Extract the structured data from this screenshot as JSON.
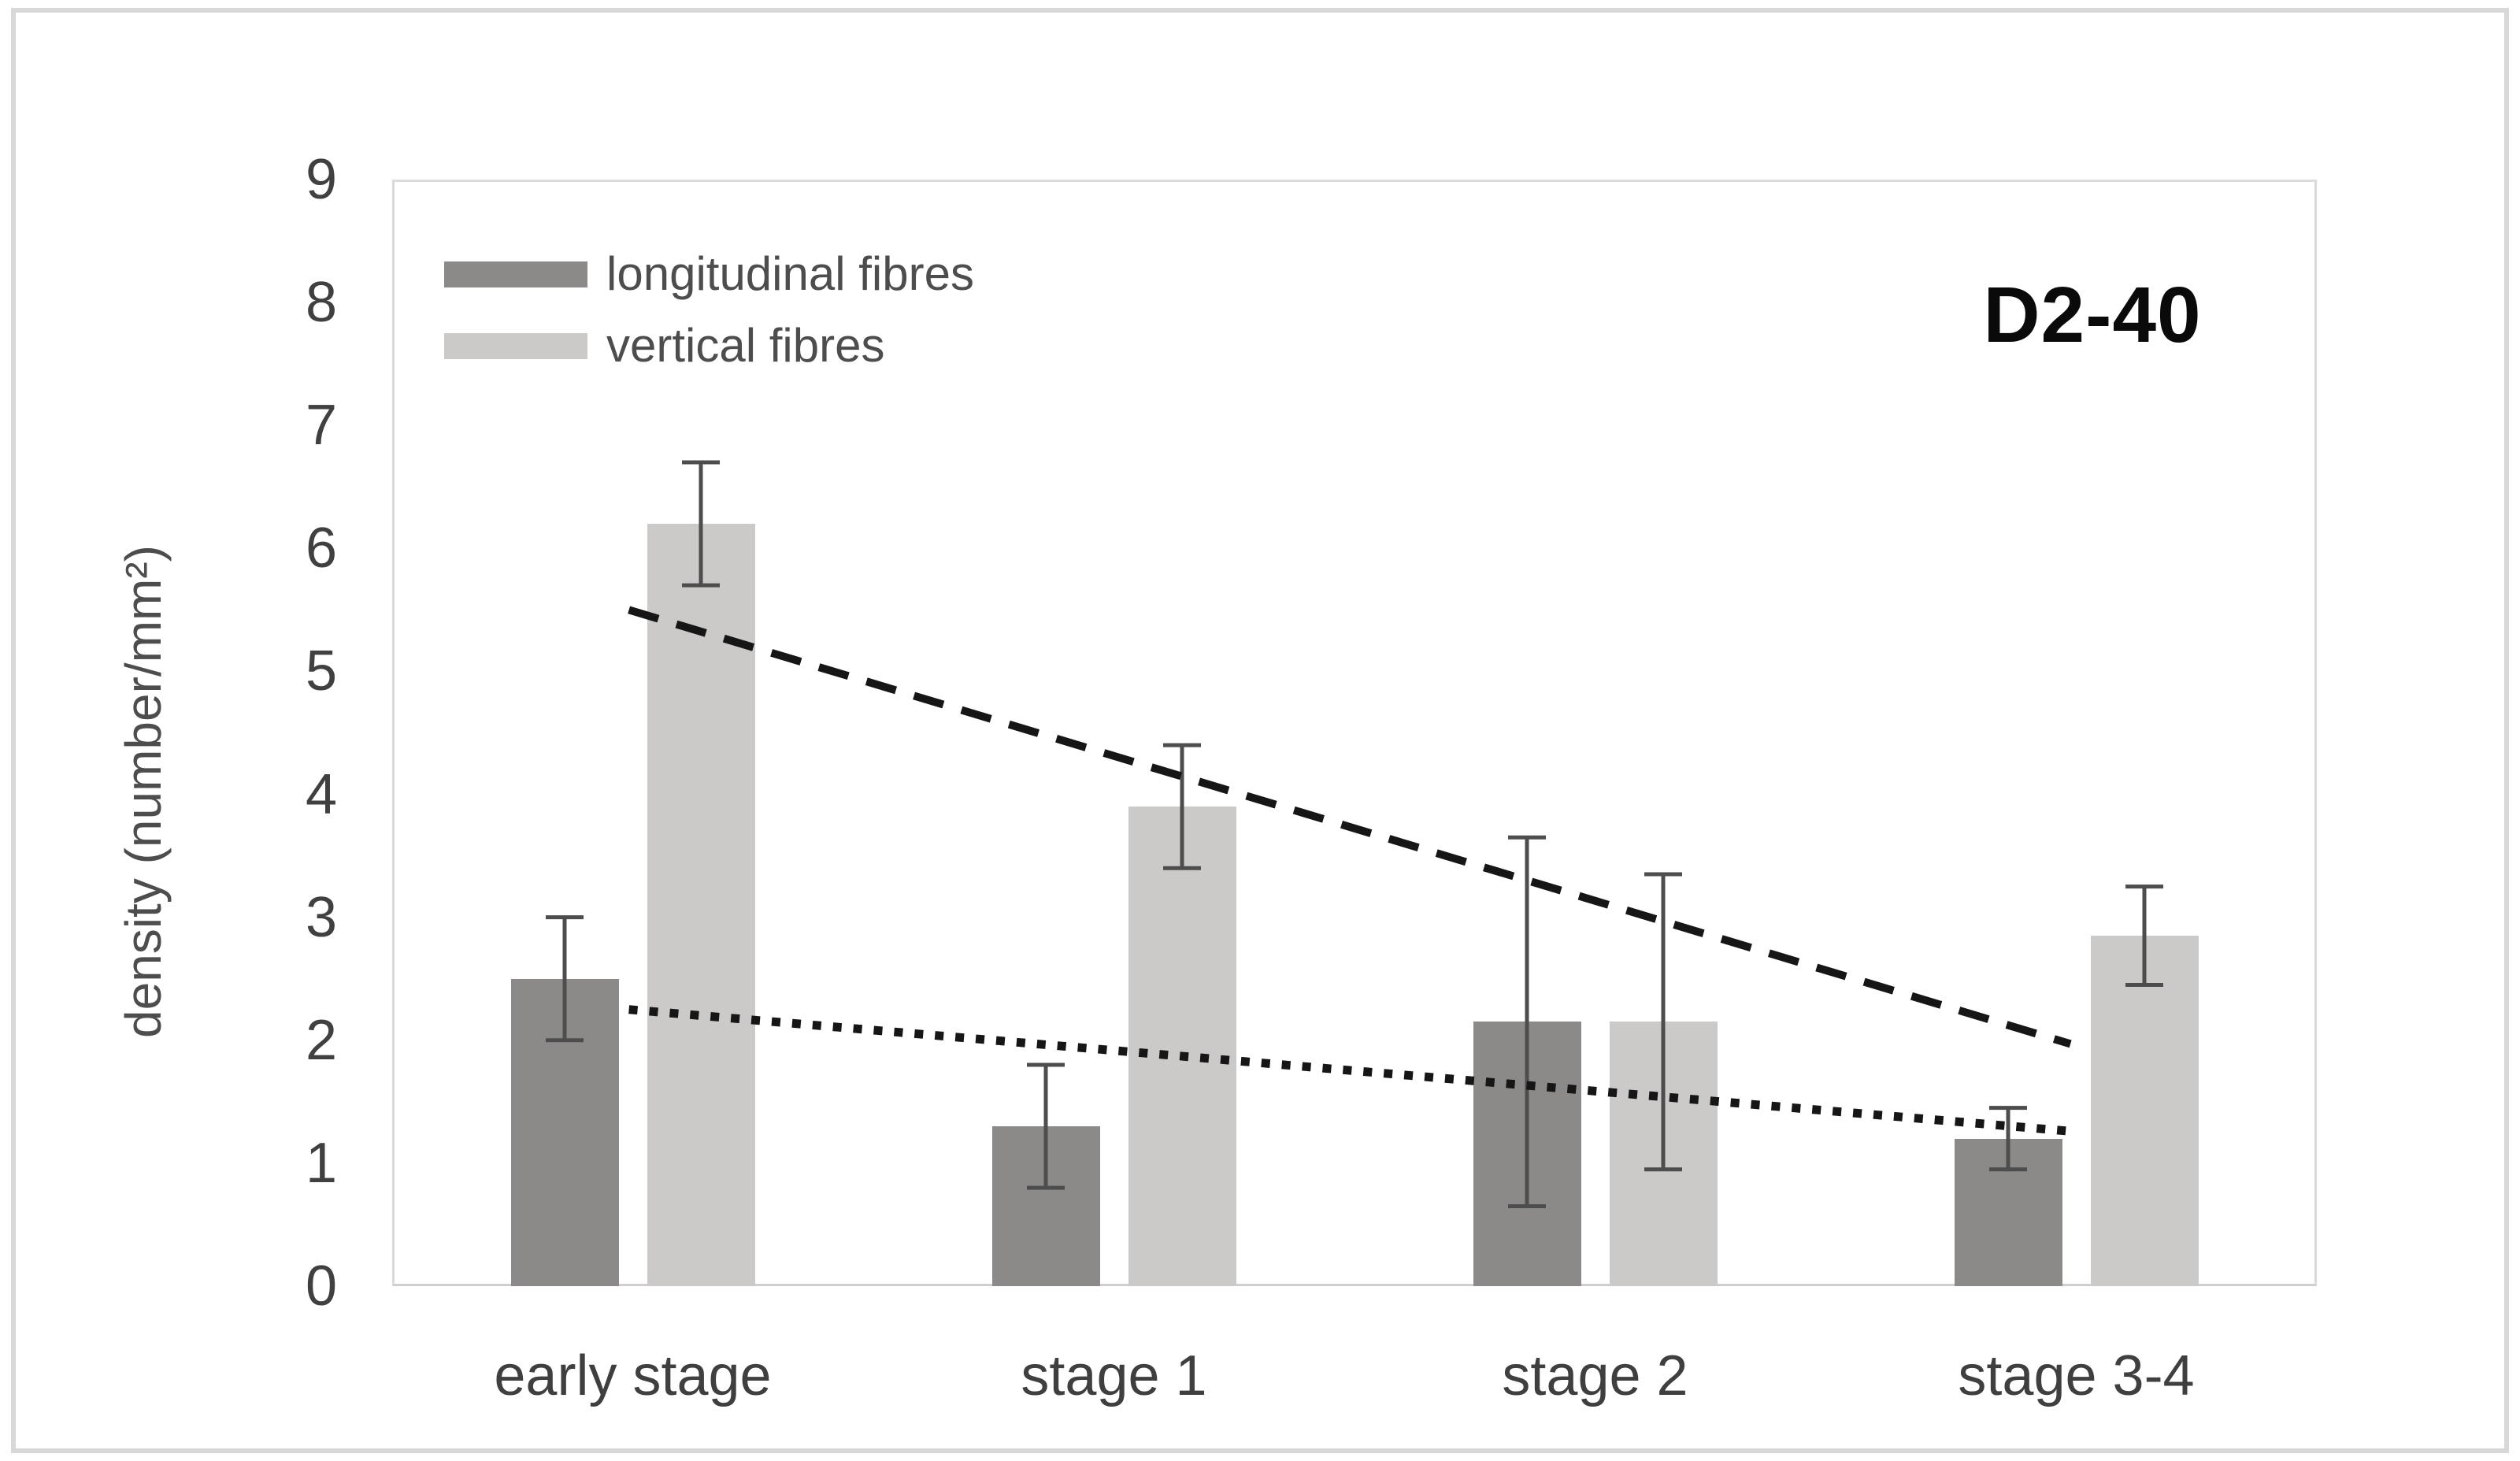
{
  "figure": {
    "title": "D2-40"
  },
  "y_axis": {
    "label": "density (number/mm²)",
    "ticks": [
      "9",
      "8",
      "7",
      "6",
      "5",
      "4",
      "3",
      "2",
      "1",
      "0"
    ],
    "min": 0,
    "max": 9
  },
  "x_axis": {
    "categories": [
      "early stage",
      "stage 1",
      "stage 2",
      "stage 3-4"
    ]
  },
  "legend": {
    "items": [
      {
        "label": "longitudinal fibres",
        "color": "#8c8a89"
      },
      {
        "label": "vertical fibres",
        "color": "#cccac9"
      }
    ]
  },
  "chart_data": {
    "type": "bar",
    "title": "D2-40",
    "ylabel": "density (number/mm²)",
    "xlabel": "",
    "ylim": [
      0,
      9
    ],
    "grid": false,
    "legend_position": "top-left-inside",
    "categories": [
      "early stage",
      "stage 1",
      "stage 2",
      "stage 3-4"
    ],
    "series": [
      {
        "name": "longitudinal fibres",
        "color": "#8c8a89",
        "values": [
          2.5,
          1.3,
          2.15,
          1.2
        ],
        "errors": [
          0.5,
          0.5,
          1.5,
          0.25
        ]
      },
      {
        "name": "vertical fibres",
        "color": "#cccac9",
        "values": [
          6.2,
          3.9,
          2.15,
          2.85
        ],
        "errors": [
          0.5,
          0.5,
          1.2,
          0.4
        ]
      }
    ],
    "trendlines": [
      {
        "series": "vertical fibres",
        "style": "dashed",
        "x_start_frac": 0.123,
        "y_start": 5.5,
        "x_end_frac": 0.872,
        "y_end": 1.97
      },
      {
        "series": "longitudinal fibres",
        "style": "dotted",
        "x_start_frac": 0.123,
        "y_start": 2.25,
        "x_end_frac": 0.872,
        "y_end": 1.26
      }
    ],
    "error_bar_color": "#4d4d4d",
    "trend_color": "#161616"
  }
}
